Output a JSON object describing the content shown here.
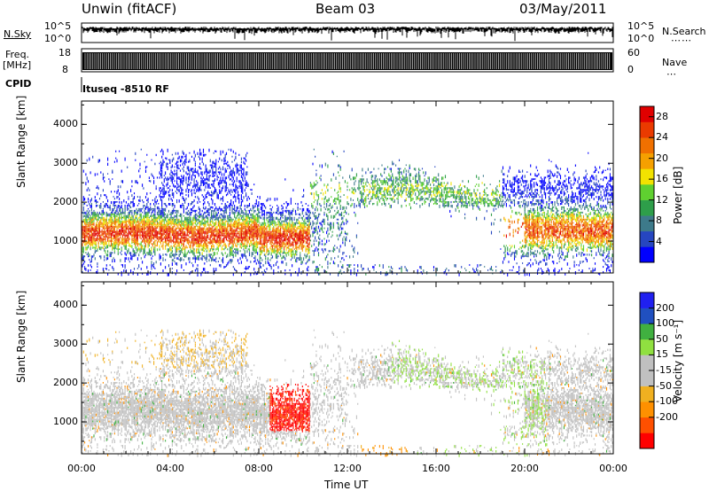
{
  "header": {
    "station": "Unwin (fitACF)",
    "beam": "Beam 03",
    "date": "03/May/2011"
  },
  "panels": {
    "nsky": {
      "left_label": "N.Sky",
      "right_label": "N.Search",
      "ticks_left": [
        "10^5",
        "10^0"
      ],
      "ticks_right": [
        "10^5",
        "10^0"
      ]
    },
    "freq": {
      "left_label": "Freq.",
      "left_unit": "[MHz]",
      "right_label": "Nave",
      "ticks_left": [
        "18",
        "8"
      ],
      "ticks_right": [
        "60",
        "0"
      ]
    },
    "cpid": {
      "left_label": "CPID",
      "program": "Ituseq -8510 RF"
    }
  },
  "colors": {
    "power": [
      "#0000ff",
      "#2646c0",
      "#3d7a8a",
      "#2e9e4a",
      "#5fd030",
      "#f2e200",
      "#f5a000",
      "#f07000",
      "#ea3a00",
      "#e00000"
    ],
    "velocity": [
      "#ff0000",
      "#ff5000",
      "#ff9000",
      "#f0b020",
      "#c0c0c0",
      "#c0c0c0",
      "#90e040",
      "#40b040",
      "#2050c0",
      "#2020f0"
    ],
    "gray": "#c0c0c0"
  },
  "chart_data": [
    {
      "type": "heatmap",
      "name": "power",
      "xlabel": "",
      "ylabel": "Slant Range [km]",
      "xlim": [
        0,
        24
      ],
      "ylim": [
        180,
        4600
      ],
      "yticks": [
        1000,
        2000,
        3000,
        4000
      ],
      "colorbar": {
        "label": "Power [dB]",
        "ticks": [
          "4",
          "8",
          "12",
          "16",
          "20",
          "24",
          "28"
        ],
        "range": [
          0,
          30
        ]
      }
    },
    {
      "type": "heatmap",
      "name": "velocity",
      "xlabel": "Time UT",
      "ylabel": "Slant Range [km]",
      "xlim": [
        0,
        24
      ],
      "ylim": [
        180,
        4600
      ],
      "xticks": [
        "00:00",
        "04:00",
        "08:00",
        "12:00",
        "16:00",
        "20:00",
        "00:00"
      ],
      "yticks": [
        1000,
        2000,
        3000,
        4000
      ],
      "colorbar": {
        "label": "Velocity [m s⁻¹]",
        "ticks": [
          "200",
          "100",
          "50",
          "15",
          "-15",
          "-50",
          "-100",
          "-200"
        ]
      }
    }
  ]
}
